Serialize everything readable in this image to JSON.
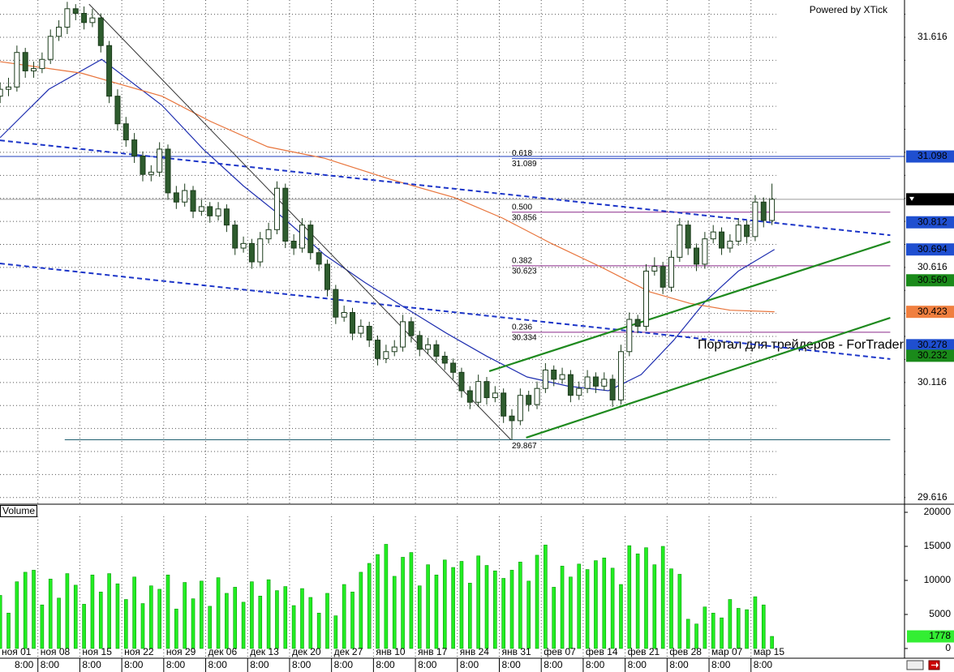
{
  "chart_data": {
    "type": "candlestick",
    "branding": "Powered by XTick",
    "watermark": "Портал для трейдеров - ForTrader",
    "xlim": [
      0,
      108.3
    ],
    "ylim": [
      29.594,
      31.778
    ],
    "yticks": [
      29.616,
      30.116,
      30.616,
      31.616
    ],
    "y_minor_ticks": [
      29.616,
      29.716,
      29.816,
      29.916,
      30.016,
      30.116,
      30.216,
      30.316,
      30.416,
      30.516,
      30.616,
      30.716,
      30.816,
      30.916,
      31.016,
      31.116,
      31.216,
      31.316,
      31.416,
      31.516,
      31.616,
      31.716
    ],
    "x_labels": [
      "ноя 01",
      "ноя 08",
      "ноя 15",
      "ноя 22",
      "ноя 29",
      "дек 06",
      "дек 13",
      "дек 20",
      "дек 27",
      "янв 10",
      "янв 17",
      "янв 24",
      "янв 31",
      "фев 07",
      "фев 14",
      "фев 21",
      "фев 28",
      "мар 07",
      "мар 15"
    ],
    "x_sublabels": [
      "8:00",
      "8:00",
      "8:00",
      "8:00",
      "8:00",
      "8:00",
      "8:00",
      "8:00",
      "8:00",
      "8:00",
      "8:00",
      "8:00",
      "8:00",
      "8:00",
      "8:00",
      "8:00",
      "8:00",
      "8:00",
      "8:00"
    ],
    "colors": {
      "up": "#ffffff",
      "down": "#2e5c2e",
      "outline": "#1b3b1b"
    },
    "ohlc": [
      [
        31.36,
        31.42,
        31.33,
        31.39
      ],
      [
        31.39,
        31.44,
        31.36,
        31.4
      ],
      [
        31.4,
        31.58,
        31.38,
        31.55
      ],
      [
        31.55,
        31.57,
        31.44,
        31.47
      ],
      [
        31.47,
        31.51,
        31.44,
        31.48
      ],
      [
        31.48,
        31.55,
        31.46,
        31.52
      ],
      [
        31.52,
        31.65,
        31.5,
        31.62
      ],
      [
        31.62,
        31.69,
        31.6,
        31.66
      ],
      [
        31.66,
        31.77,
        31.63,
        31.74
      ],
      [
        31.74,
        31.76,
        31.69,
        31.72
      ],
      [
        31.72,
        31.75,
        31.65,
        31.68
      ],
      [
        31.68,
        31.74,
        31.66,
        31.7
      ],
      [
        31.7,
        31.72,
        31.55,
        31.58
      ],
      [
        31.58,
        31.6,
        31.33,
        31.36
      ],
      [
        31.36,
        31.39,
        31.21,
        31.24
      ],
      [
        31.24,
        31.27,
        31.14,
        31.17
      ],
      [
        31.17,
        31.2,
        31.07,
        31.1
      ],
      [
        31.1,
        31.12,
        30.99,
        31.02
      ],
      [
        31.02,
        31.06,
        30.99,
        31.03
      ],
      [
        31.03,
        31.16,
        31.01,
        31.13
      ],
      [
        31.13,
        31.15,
        30.91,
        30.94
      ],
      [
        30.94,
        30.97,
        30.87,
        30.9
      ],
      [
        30.9,
        30.98,
        30.88,
        30.95
      ],
      [
        30.95,
        30.97,
        30.83,
        30.86
      ],
      [
        30.86,
        30.91,
        30.84,
        30.88
      ],
      [
        30.88,
        30.9,
        30.81,
        30.84
      ],
      [
        30.84,
        30.9,
        30.82,
        30.87
      ],
      [
        30.87,
        30.89,
        30.77,
        30.8
      ],
      [
        30.8,
        30.82,
        30.67,
        30.7
      ],
      [
        30.7,
        30.75,
        30.68,
        30.72
      ],
      [
        30.72,
        30.74,
        30.61,
        30.64
      ],
      [
        30.64,
        30.77,
        30.62,
        30.74
      ],
      [
        30.74,
        30.81,
        30.72,
        30.78
      ],
      [
        30.78,
        30.99,
        30.76,
        30.96
      ],
      [
        30.96,
        30.98,
        30.7,
        30.73
      ],
      [
        30.73,
        30.76,
        30.67,
        30.7
      ],
      [
        30.7,
        30.83,
        30.68,
        30.8
      ],
      [
        30.8,
        30.82,
        30.65,
        30.68
      ],
      [
        30.68,
        30.7,
        30.6,
        30.63
      ],
      [
        30.63,
        30.65,
        30.49,
        30.52
      ],
      [
        30.52,
        30.54,
        30.37,
        30.4
      ],
      [
        30.4,
        30.45,
        30.38,
        30.42
      ],
      [
        30.42,
        30.44,
        30.3,
        30.33
      ],
      [
        30.33,
        30.39,
        30.31,
        30.36
      ],
      [
        30.36,
        30.38,
        30.27,
        30.3
      ],
      [
        30.3,
        30.32,
        30.19,
        30.22
      ],
      [
        30.22,
        30.28,
        30.2,
        30.25
      ],
      [
        30.25,
        30.3,
        30.23,
        30.27
      ],
      [
        30.27,
        30.41,
        30.25,
        30.38
      ],
      [
        30.38,
        30.4,
        30.29,
        30.32
      ],
      [
        30.32,
        30.34,
        30.23,
        30.26
      ],
      [
        30.26,
        30.31,
        30.24,
        30.28
      ],
      [
        30.28,
        30.3,
        30.2,
        30.23
      ],
      [
        30.23,
        30.25,
        30.17,
        30.2
      ],
      [
        30.2,
        30.22,
        30.13,
        30.16
      ],
      [
        30.16,
        30.18,
        30.05,
        30.08
      ],
      [
        30.08,
        30.1,
        30.0,
        30.03
      ],
      [
        30.03,
        30.15,
        30.01,
        30.12
      ],
      [
        30.12,
        30.14,
        30.02,
        30.05
      ],
      [
        30.05,
        30.1,
        30.03,
        30.07
      ],
      [
        30.07,
        30.09,
        29.94,
        29.97
      ],
      [
        29.97,
        30.0,
        29.867,
        29.95
      ],
      [
        29.95,
        30.09,
        29.93,
        30.06
      ],
      [
        30.06,
        30.08,
        29.99,
        30.02
      ],
      [
        30.02,
        30.12,
        30.0,
        30.09
      ],
      [
        30.09,
        30.2,
        30.07,
        30.17
      ],
      [
        30.17,
        30.19,
        30.1,
        30.13
      ],
      [
        30.13,
        30.18,
        30.11,
        30.15
      ],
      [
        30.15,
        30.17,
        30.03,
        30.06
      ],
      [
        30.06,
        30.12,
        30.04,
        30.09
      ],
      [
        30.09,
        30.17,
        30.07,
        30.14
      ],
      [
        30.14,
        30.16,
        30.07,
        30.1
      ],
      [
        30.1,
        30.16,
        30.08,
        30.13
      ],
      [
        30.13,
        30.15,
        30.01,
        30.04
      ],
      [
        30.04,
        30.28,
        30.02,
        30.25
      ],
      [
        30.25,
        30.42,
        30.23,
        30.39
      ],
      [
        30.39,
        30.41,
        30.33,
        30.36
      ],
      [
        30.36,
        30.63,
        30.34,
        30.6
      ],
      [
        30.6,
        30.66,
        30.58,
        30.62
      ],
      [
        30.62,
        30.64,
        30.5,
        30.53
      ],
      [
        30.53,
        30.69,
        30.51,
        30.66
      ],
      [
        30.66,
        30.83,
        30.64,
        30.8
      ],
      [
        30.8,
        30.82,
        30.67,
        30.7
      ],
      [
        30.7,
        30.72,
        30.6,
        30.63
      ],
      [
        30.63,
        30.77,
        30.61,
        30.74
      ],
      [
        30.74,
        30.8,
        30.72,
        30.77
      ],
      [
        30.77,
        30.79,
        30.67,
        30.7
      ],
      [
        30.7,
        30.76,
        30.68,
        30.73
      ],
      [
        30.73,
        30.83,
        30.71,
        30.8
      ],
      [
        30.8,
        30.82,
        30.72,
        30.75
      ],
      [
        30.75,
        30.93,
        30.73,
        30.9
      ],
      [
        30.9,
        30.92,
        30.79,
        30.82
      ],
      [
        30.82,
        30.98,
        30.8,
        30.912
      ]
    ],
    "moving_averages": [
      {
        "color": "#1f2fb0",
        "x": [
          0.5,
          6.3,
          12.6,
          19.8,
          24.7,
          29.5,
          34.3,
          39.2,
          44,
          48.8,
          53.7,
          58.5,
          63.3,
          68.2,
          73,
          76.9,
          80.8,
          84.6,
          88.5,
          92.8
        ],
        "values": [
          31.18,
          31.39,
          31.52,
          31.32,
          31.13,
          30.97,
          30.83,
          30.67,
          30.55,
          30.44,
          30.33,
          30.23,
          30.14,
          30.1,
          30.08,
          30.15,
          30.3,
          30.47,
          30.6,
          30.694
        ]
      },
      {
        "color": "#e8743b",
        "x": [
          0.5,
          10.2,
          19.8,
          25.6,
          32.4,
          39.2,
          46.9,
          54.6,
          60.4,
          66.2,
          72,
          77.9,
          82.7,
          87.5,
          92.8
        ],
        "values": [
          31.51,
          31.46,
          31.36,
          31.25,
          31.14,
          31.09,
          31.0,
          30.92,
          30.83,
          30.72,
          30.62,
          30.51,
          30.46,
          30.43,
          30.423
        ]
      }
    ],
    "trend_lines": [
      {
        "color": "#1c35c8",
        "dashed": true,
        "x": [
          0.48,
          106.6
        ],
        "values": [
          31.168,
          30.756
        ]
      },
      {
        "color": "#1c35c8",
        "dashed": true,
        "x": [
          0.48,
          106.6
        ],
        "values": [
          30.633,
          30.218
        ]
      },
      {
        "color": "#1f8a1f",
        "dashed": false,
        "x": [
          58.8,
          106.6
        ],
        "values": [
          30.165,
          30.728
        ]
      },
      {
        "color": "#1f8a1f",
        "dashed": false,
        "x": [
          63.2,
          106.6
        ],
        "values": [
          29.876,
          30.397
        ]
      },
      {
        "color": "#333333",
        "dashed": false,
        "x": [
          11.1,
          61.4
        ],
        "values": [
          31.76,
          29.866
        ]
      }
    ],
    "horizontal_lines": [
      {
        "value": 31.098,
        "color": "#1f3fbf"
      },
      {
        "value": 30.912,
        "color": "#9a9a9a"
      }
    ],
    "fib_x": [
      61.5,
      106.6
    ],
    "fib_levels": [
      {
        "ratio": "0.618",
        "value": 31.089,
        "color": "#2a48c8"
      },
      {
        "ratio": "0.500",
        "value": 30.856,
        "color": "#8a2a8a"
      },
      {
        "ratio": "0.382",
        "value": 30.623,
        "color": "#8a2a8a"
      },
      {
        "ratio": "0.236",
        "value": 30.334,
        "color": "#8a2a8a"
      }
    ],
    "low_line": {
      "value": 29.867,
      "x": [
        8.2,
        106.6
      ],
      "color": "#1f5f6f"
    },
    "price_tags": [
      {
        "value": 31.098,
        "color": "#1f4fd0"
      },
      {
        "value": 30.912,
        "color": "#000000"
      },
      {
        "value": 30.812,
        "color": "#1f4fd0"
      },
      {
        "value": 30.694,
        "color": "#1f4fd0"
      },
      {
        "value": 30.56,
        "label": "30.560",
        "color": "#1a8a1a"
      },
      {
        "value": 30.423,
        "color": "#f07f3f"
      },
      {
        "value": 30.278,
        "color": "#1f4fd0"
      },
      {
        "value": 30.232,
        "color": "#1a8a1a"
      }
    ],
    "volume": {
      "label": "Volume",
      "color": "#22ee22",
      "tag_color": "#33ee33",
      "ylim": [
        0,
        20000
      ],
      "yticks": [
        0,
        5000,
        10000,
        15000,
        20000
      ],
      "values": [
        7800,
        5200,
        9800,
        11200,
        11500,
        6400,
        10200,
        7400,
        11000,
        9300,
        6500,
        10800,
        8300,
        11000,
        9500,
        7200,
        10500,
        6600,
        9200,
        8700,
        10800,
        5800,
        9700,
        7300,
        9900,
        6200,
        10400,
        8100,
        9000,
        6800,
        9800,
        7700,
        10100,
        8500,
        9100,
        6300,
        8800,
        7500,
        5200,
        8100,
        4800,
        9400,
        8300,
        11200,
        12500,
        13800,
        15300,
        10600,
        13400,
        14100,
        9200,
        12300,
        10800,
        13000,
        11900,
        12800,
        9600,
        13600,
        12200,
        11400,
        10300,
        11500,
        12700,
        9900,
        13700,
        15200,
        9000,
        12100,
        10500,
        12400,
        11600,
        12900,
        13300,
        11800,
        9400,
        15100,
        13900,
        14800,
        12300,
        15000,
        11700,
        10900,
        4300,
        3600,
        6100,
        5200,
        4500,
        7200,
        5900,
        5700,
        7600,
        6400,
        1778
      ]
    }
  }
}
